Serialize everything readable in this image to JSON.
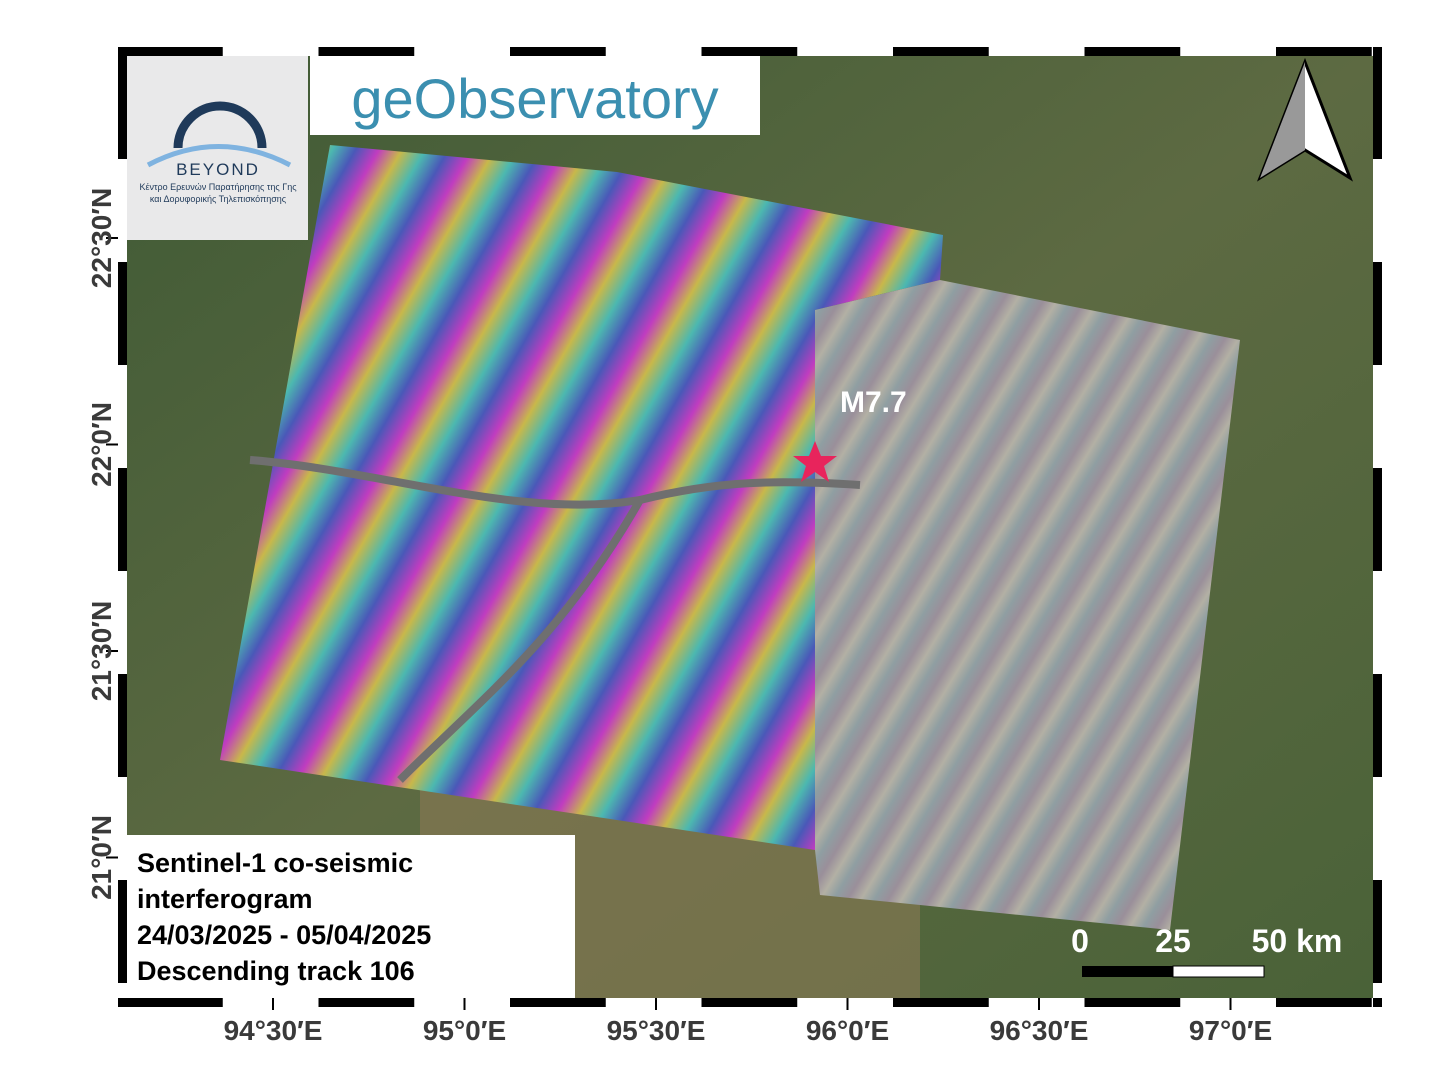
{
  "map": {
    "logo_left": {
      "name": "BEYOND",
      "line1": "Κέντρο Ερευνών Παρατήρησης της Γης",
      "line2": "και Δορυφορικής Τηλεπισκόπησης"
    },
    "logo_right": "geObservatory",
    "event_label": "M7.7",
    "legend": [
      "Sentinel-1 co-seismic",
      "interferogram",
      "24/03/2025 - 05/04/2025",
      "Descending track 106"
    ],
    "scale_bar": [
      "0",
      "25",
      "50 km"
    ],
    "lon_ticks": [
      {
        "value": 94.5,
        "label": "94°30′E"
      },
      {
        "value": 95.0,
        "label": "95°0′E"
      },
      {
        "value": 95.5,
        "label": "95°30′E"
      },
      {
        "value": 96.0,
        "label": "96°0′E"
      },
      {
        "value": 96.5,
        "label": "96°30′E"
      },
      {
        "value": 97.0,
        "label": "97°0′E"
      }
    ],
    "lat_ticks": [
      {
        "value": 22.5,
        "label": "22°30′N"
      },
      {
        "value": 22.0,
        "label": "22°0′N"
      },
      {
        "value": 21.5,
        "label": "21°30′N"
      },
      {
        "value": 21.0,
        "label": "21°0′N"
      }
    ]
  }
}
